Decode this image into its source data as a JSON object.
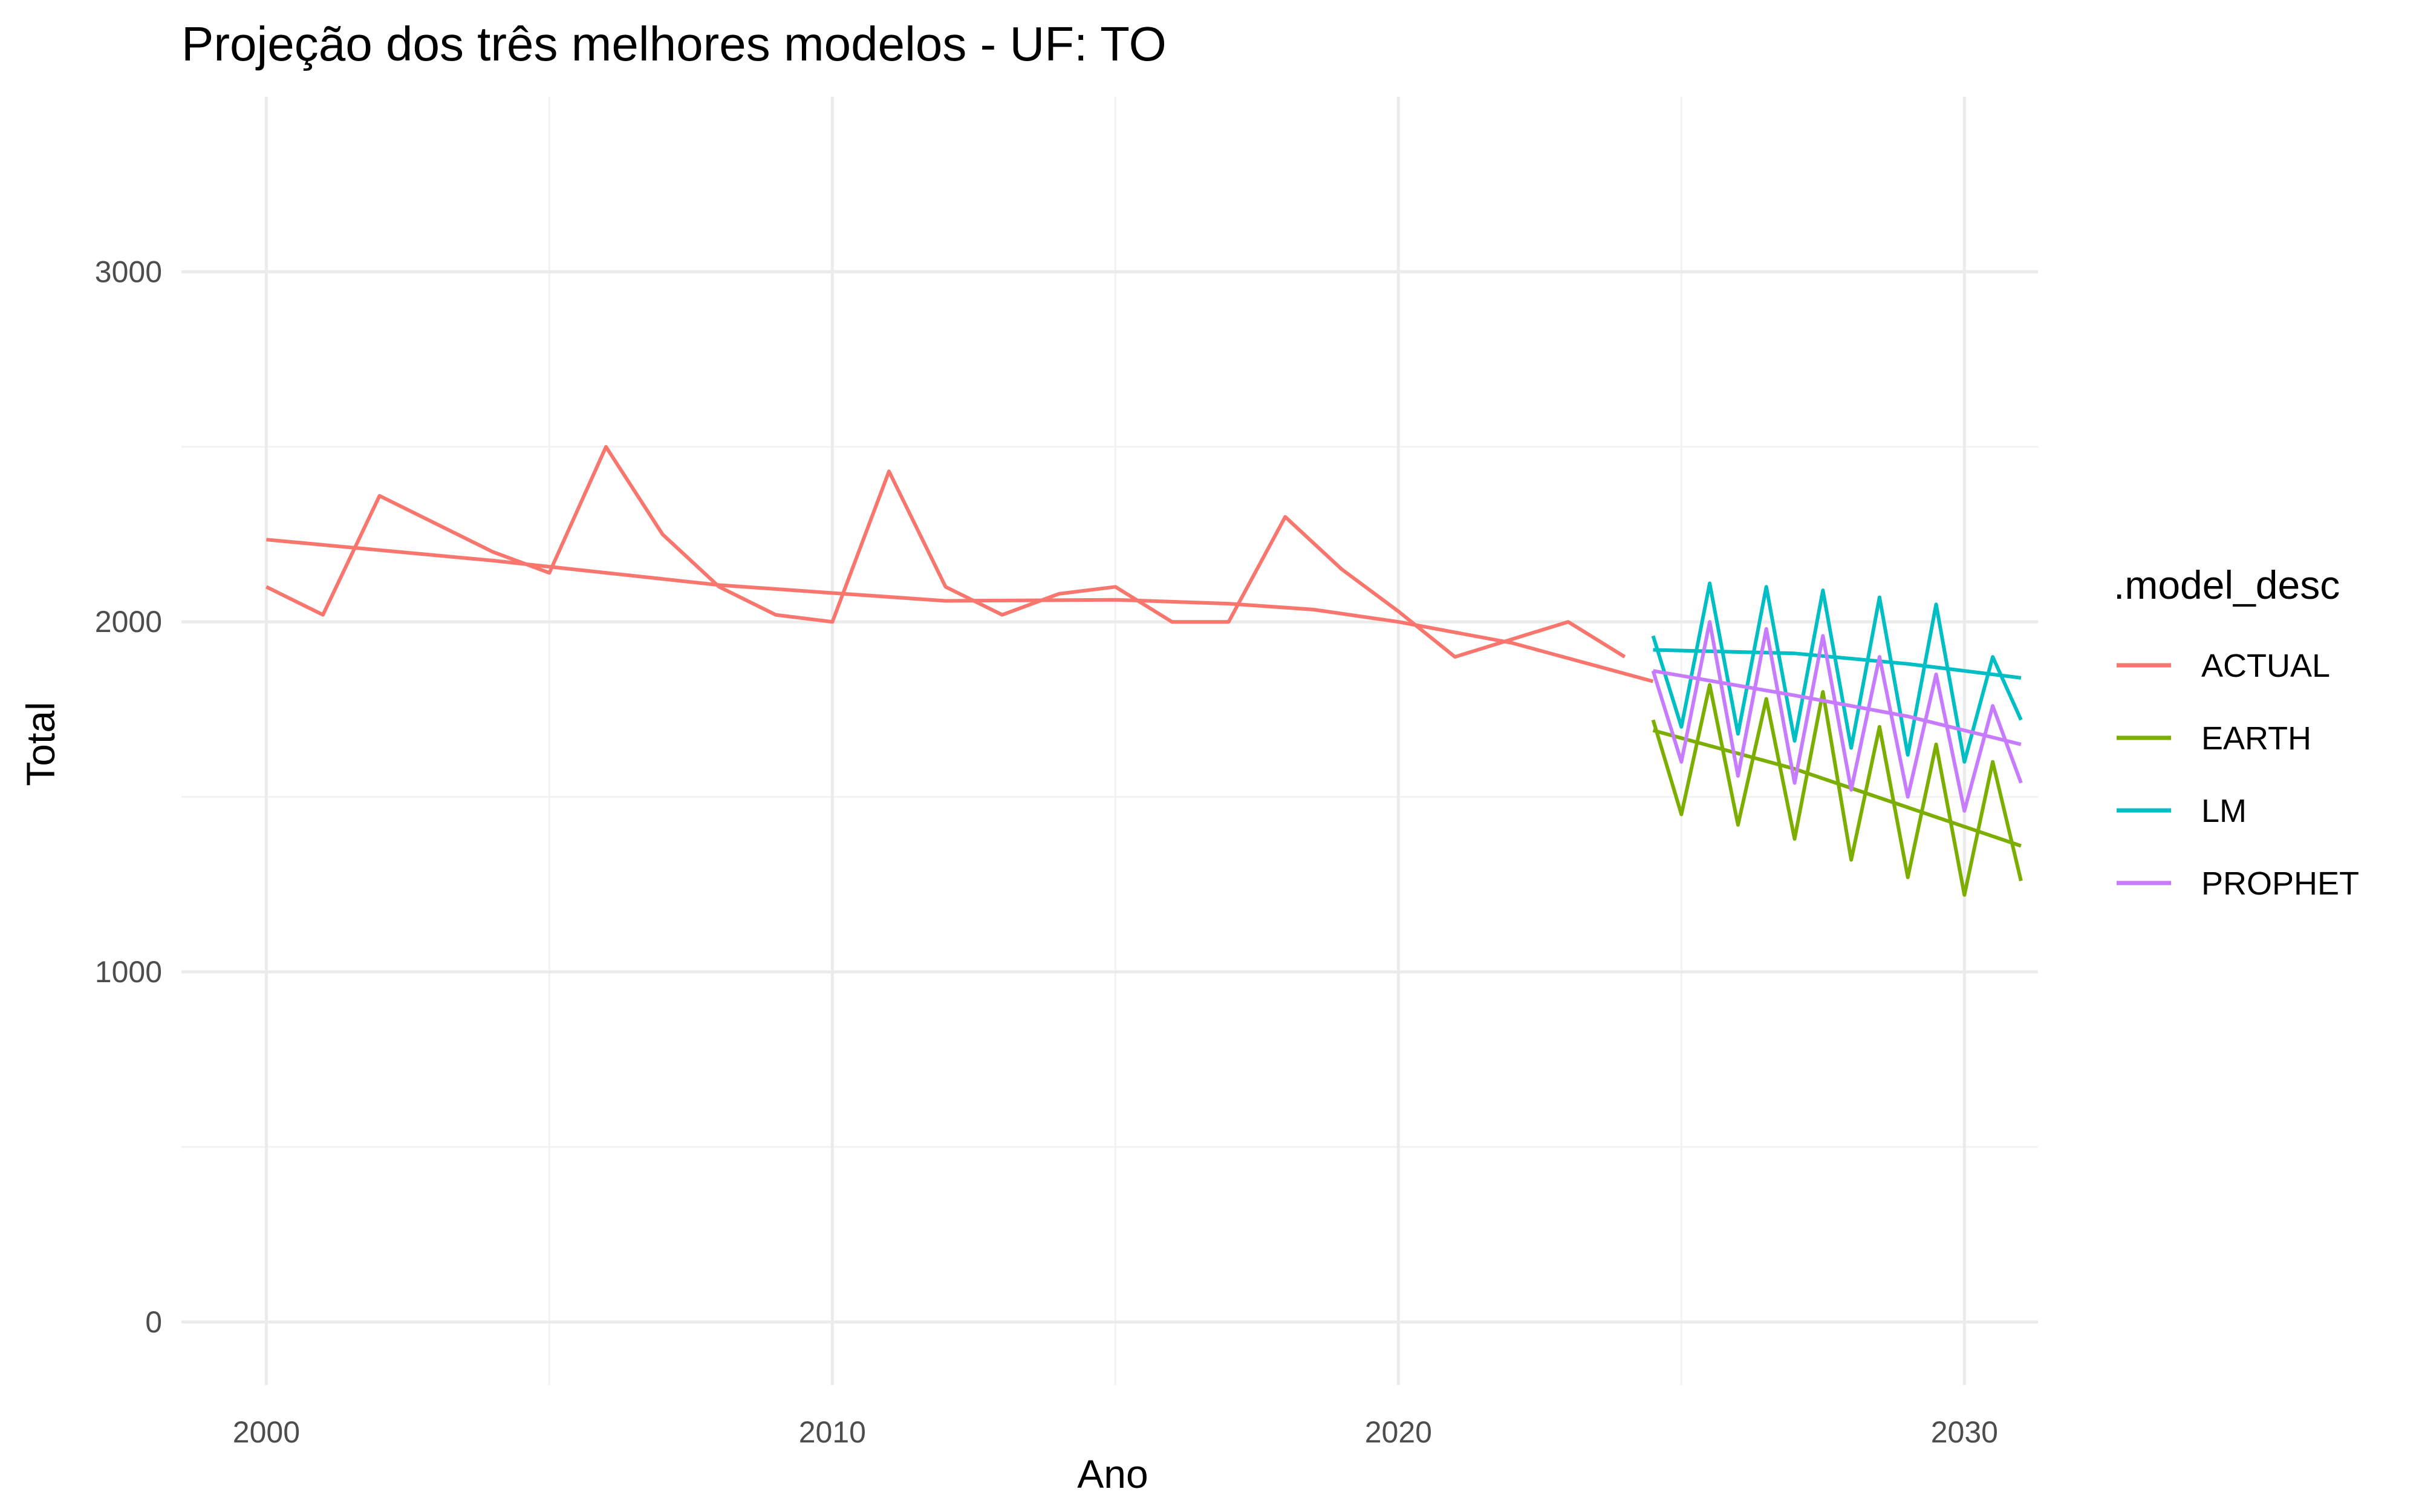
{
  "chart_data": {
    "type": "line",
    "title": "Projeção dos três melhores modelos - UF: TO",
    "xlabel": "Ano",
    "ylabel": "Total",
    "xlim": [
      1998.5,
      2031.3
    ],
    "ylim": [
      -180,
      3500
    ],
    "x_ticks": [
      2000,
      2010,
      2020,
      2030
    ],
    "x_tick_labels": [
      "2000",
      "2010",
      "2020",
      "2030"
    ],
    "y_ticks": [
      0,
      1000,
      2000,
      3000
    ],
    "y_tick_labels": [
      "0",
      "1000",
      "2000",
      "3000"
    ],
    "grid": true,
    "legend_title": ".model_desc",
    "legend_position": "right",
    "series": [
      {
        "name": "ACTUAL",
        "color": "#F8766D",
        "x": [
          2000.0,
          2001.0,
          2002.0,
          2003.0,
          2004.0,
          2005.0,
          2006.0,
          2007.0,
          2008.0,
          2009.0,
          2010.0,
          2011.0,
          2012.0,
          2013.0,
          2014.0,
          2015.0,
          2016.0,
          2017.0,
          2018.0,
          2019.0,
          2020.0,
          2021.0,
          2022.0,
          2023.0,
          2024.0
        ],
        "values": [
          2100,
          2020,
          2360,
          2280,
          2200,
          2140,
          2500,
          2250,
          2100,
          2020,
          2000,
          2430,
          2100,
          2020,
          2080,
          2100,
          2000,
          2000,
          2300,
          2150,
          2030,
          1900,
          1950,
          2000,
          1900
        ],
        "trend_x": [
          2000,
          2004,
          2008,
          2012,
          2015,
          2017,
          2018.5,
          2020,
          2022,
          2024.5
        ],
        "trend": [
          2235,
          2175,
          2105,
          2060,
          2063,
          2052,
          2035,
          2000,
          1940,
          1830
        ]
      },
      {
        "name": "EARTH",
        "color": "#7CAE00",
        "x": [
          2024.5,
          2025.0,
          2025.5,
          2026.0,
          2026.5,
          2027.0,
          2027.5,
          2028.0,
          2028.5,
          2029.0,
          2029.5,
          2030.0,
          2030.5,
          2031.0
        ],
        "values": [
          1720,
          1450,
          1820,
          1420,
          1780,
          1380,
          1800,
          1320,
          1700,
          1270,
          1650,
          1220,
          1600,
          1260
        ],
        "trend_x": [
          2024.5,
          2027,
          2029,
          2031
        ],
        "trend": [
          1690,
          1580,
          1470,
          1360
        ]
      },
      {
        "name": "LM",
        "color": "#00BFC4",
        "x": [
          2024.5,
          2025.0,
          2025.5,
          2026.0,
          2026.5,
          2027.0,
          2027.5,
          2028.0,
          2028.5,
          2029.0,
          2029.5,
          2030.0,
          2030.5,
          2031.0
        ],
        "values": [
          1960,
          1700,
          2110,
          1680,
          2100,
          1660,
          2090,
          1640,
          2070,
          1620,
          2050,
          1600,
          1900,
          1720
        ],
        "trend_x": [
          2024.5,
          2027,
          2029,
          2031
        ],
        "trend": [
          1920,
          1910,
          1880,
          1840
        ]
      },
      {
        "name": "PROPHET",
        "color": "#C77CFF",
        "x": [
          2024.5,
          2025.0,
          2025.5,
          2026.0,
          2026.5,
          2027.0,
          2027.5,
          2028.0,
          2028.5,
          2029.0,
          2029.5,
          2030.0,
          2030.5,
          2031.0
        ],
        "values": [
          1860,
          1600,
          2000,
          1560,
          1980,
          1540,
          1960,
          1520,
          1900,
          1500,
          1850,
          1460,
          1760,
          1540
        ],
        "trend_x": [
          2024.5,
          2027,
          2029,
          2031
        ],
        "trend": [
          1860,
          1790,
          1730,
          1650
        ]
      }
    ]
  }
}
